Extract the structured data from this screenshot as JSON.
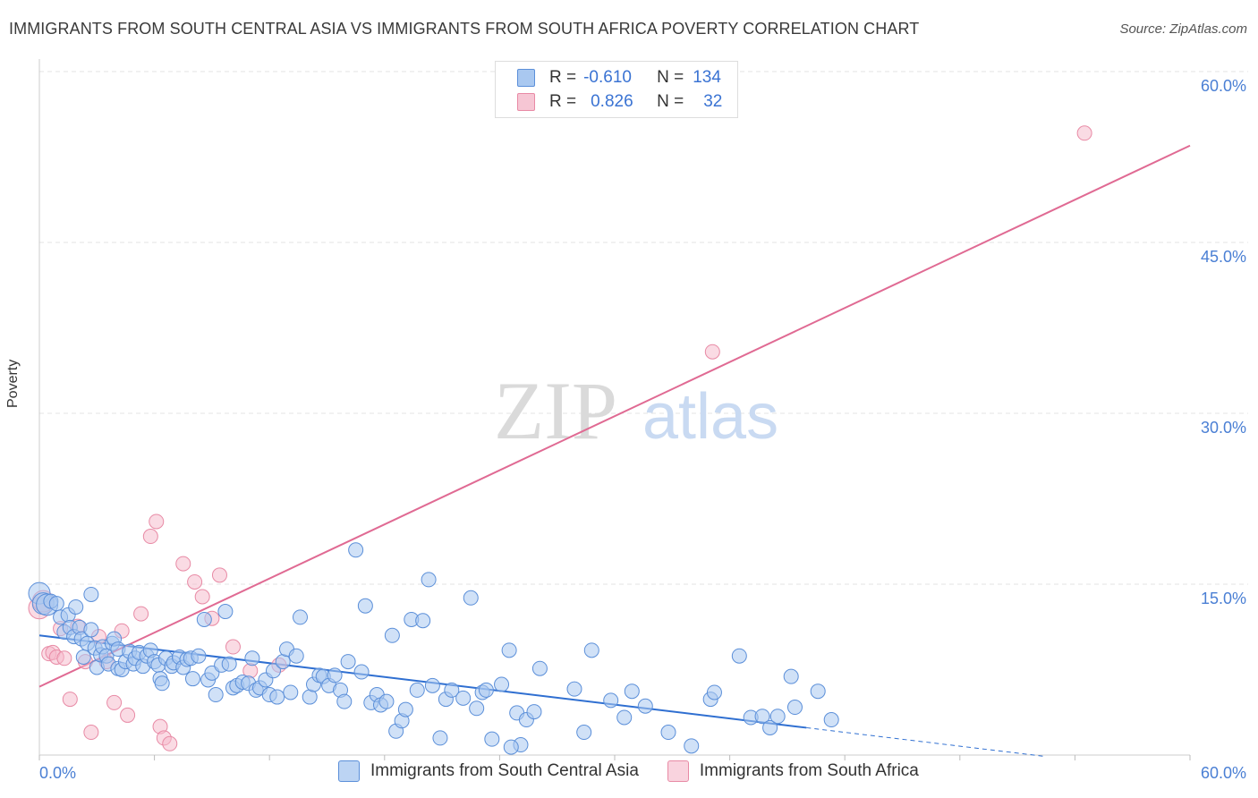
{
  "title": "IMMIGRANTS FROM SOUTH CENTRAL ASIA VS IMMIGRANTS FROM SOUTH AFRICA POVERTY CORRELATION CHART",
  "source": "Source: ZipAtlas.com",
  "watermark": {
    "zip": "ZIP",
    "atlas": "atlas"
  },
  "legend": {
    "r_label": "R =",
    "n_label": "N =",
    "series": [
      {
        "r": "-0.610",
        "n": "134"
      },
      {
        "r": "0.826",
        "n": "32"
      }
    ]
  },
  "colors": {
    "blue_fill": "#a9c8f0",
    "blue_stroke": "#5b8fd9",
    "blue_line": "#2f6fd1",
    "pink_fill": "#f6b8c9",
    "pink_stroke": "#e88aa5",
    "pink_line": "#e06a93",
    "tick_text": "#4a7fd4"
  },
  "chart_data": {
    "type": "scatter",
    "title": "IMMIGRANTS FROM SOUTH CENTRAL ASIA VS IMMIGRANTS FROM SOUTH AFRICA POVERTY CORRELATION CHART",
    "xlabel": "",
    "ylabel": "Poverty",
    "xlim": [
      0,
      60
    ],
    "ylim": [
      0,
      60
    ],
    "x_tick_labels": [
      {
        "value": 0,
        "label": "0.0%"
      },
      {
        "value": 60,
        "label": "60.0%"
      }
    ],
    "y_tick_labels": [
      {
        "value": 15,
        "label": "15.0%"
      },
      {
        "value": 30,
        "label": "30.0%"
      },
      {
        "value": 45,
        "label": "45.0%"
      },
      {
        "value": 60,
        "label": "60.0%"
      }
    ],
    "series": [
      {
        "name": "Immigrants from South Central Asia",
        "color": "blue",
        "trend": {
          "x": [
            0,
            40
          ],
          "y": [
            10.5,
            2.4
          ],
          "dashed_extension_to_x": 52.5
        },
        "points": [
          [
            0.0,
            14.2
          ],
          [
            0.2,
            13.3
          ],
          [
            0.4,
            13.2
          ],
          [
            0.6,
            13.5
          ],
          [
            0.9,
            13.3
          ],
          [
            1.1,
            12.1
          ],
          [
            1.3,
            10.8
          ],
          [
            1.5,
            12.3
          ],
          [
            1.6,
            11.2
          ],
          [
            1.8,
            10.4
          ],
          [
            1.9,
            13.0
          ],
          [
            2.1,
            11.2
          ],
          [
            2.2,
            10.2
          ],
          [
            2.3,
            8.6
          ],
          [
            2.5,
            9.8
          ],
          [
            2.7,
            11.0
          ],
          [
            2.7,
            14.1
          ],
          [
            2.9,
            9.4
          ],
          [
            3.0,
            7.7
          ],
          [
            3.2,
            8.8
          ],
          [
            3.3,
            9.5
          ],
          [
            3.5,
            8.7
          ],
          [
            3.6,
            8.0
          ],
          [
            3.8,
            9.8
          ],
          [
            3.9,
            10.2
          ],
          [
            4.1,
            9.3
          ],
          [
            4.1,
            7.6
          ],
          [
            4.3,
            7.5
          ],
          [
            4.5,
            8.2
          ],
          [
            4.7,
            9.1
          ],
          [
            4.9,
            8.0
          ],
          [
            5.0,
            8.5
          ],
          [
            5.2,
            9.0
          ],
          [
            5.4,
            7.8
          ],
          [
            5.6,
            8.7
          ],
          [
            5.8,
            9.2
          ],
          [
            6.0,
            8.2
          ],
          [
            6.2,
            7.9
          ],
          [
            6.3,
            6.7
          ],
          [
            6.4,
            6.3
          ],
          [
            6.6,
            8.5
          ],
          [
            6.9,
            7.8
          ],
          [
            7.0,
            8.1
          ],
          [
            7.3,
            8.6
          ],
          [
            7.5,
            7.7
          ],
          [
            7.7,
            8.4
          ],
          [
            7.9,
            8.5
          ],
          [
            8.0,
            6.7
          ],
          [
            8.3,
            8.7
          ],
          [
            8.6,
            11.9
          ],
          [
            8.8,
            6.6
          ],
          [
            9.0,
            7.2
          ],
          [
            9.2,
            5.3
          ],
          [
            9.5,
            7.9
          ],
          [
            9.7,
            12.6
          ],
          [
            9.9,
            8.0
          ],
          [
            10.1,
            5.9
          ],
          [
            10.3,
            6.1
          ],
          [
            10.6,
            6.4
          ],
          [
            10.9,
            6.3
          ],
          [
            11.1,
            8.5
          ],
          [
            11.3,
            5.7
          ],
          [
            11.5,
            5.9
          ],
          [
            11.8,
            6.6
          ],
          [
            12.0,
            5.3
          ],
          [
            12.2,
            7.4
          ],
          [
            12.4,
            5.1
          ],
          [
            12.7,
            8.2
          ],
          [
            12.9,
            9.3
          ],
          [
            13.1,
            5.5
          ],
          [
            13.4,
            8.7
          ],
          [
            13.6,
            12.1
          ],
          [
            14.1,
            5.1
          ],
          [
            14.3,
            6.2
          ],
          [
            14.6,
            7.0
          ],
          [
            14.8,
            6.9
          ],
          [
            15.1,
            6.1
          ],
          [
            15.4,
            7.0
          ],
          [
            15.7,
            5.7
          ],
          [
            15.9,
            4.7
          ],
          [
            16.1,
            8.2
          ],
          [
            16.5,
            18.0
          ],
          [
            16.8,
            7.3
          ],
          [
            17.0,
            13.1
          ],
          [
            17.3,
            4.6
          ],
          [
            17.6,
            5.3
          ],
          [
            17.8,
            4.4
          ],
          [
            18.1,
            4.7
          ],
          [
            18.4,
            10.5
          ],
          [
            18.6,
            2.1
          ],
          [
            18.9,
            3.0
          ],
          [
            19.1,
            4.0
          ],
          [
            19.4,
            11.9
          ],
          [
            19.7,
            5.7
          ],
          [
            20.0,
            11.8
          ],
          [
            20.3,
            15.4
          ],
          [
            20.5,
            6.1
          ],
          [
            20.9,
            1.5
          ],
          [
            21.2,
            4.9
          ],
          [
            21.5,
            5.7
          ],
          [
            22.1,
            5.0
          ],
          [
            22.5,
            13.8
          ],
          [
            22.8,
            4.1
          ],
          [
            23.1,
            5.5
          ],
          [
            23.3,
            5.7
          ],
          [
            23.6,
            1.4
          ],
          [
            24.1,
            6.2
          ],
          [
            24.5,
            9.2
          ],
          [
            24.9,
            3.7
          ],
          [
            25.1,
            0.9
          ],
          [
            25.4,
            3.1
          ],
          [
            25.8,
            3.8
          ],
          [
            26.1,
            7.6
          ],
          [
            27.9,
            5.8
          ],
          [
            28.4,
            2.0
          ],
          [
            28.8,
            9.2
          ],
          [
            29.8,
            4.8
          ],
          [
            30.5,
            3.3
          ],
          [
            30.9,
            5.6
          ],
          [
            31.6,
            4.3
          ],
          [
            32.8,
            2.0
          ],
          [
            34.0,
            0.8
          ],
          [
            35.0,
            4.9
          ],
          [
            35.2,
            5.5
          ],
          [
            36.5,
            8.7
          ],
          [
            37.1,
            3.3
          ],
          [
            37.7,
            3.4
          ],
          [
            38.1,
            2.4
          ],
          [
            38.5,
            3.4
          ],
          [
            39.2,
            6.9
          ],
          [
            39.4,
            4.2
          ],
          [
            40.6,
            5.6
          ],
          [
            41.3,
            3.1
          ],
          [
            24.6,
            0.7
          ]
        ]
      },
      {
        "name": "Immigrants from South Africa",
        "color": "pink",
        "trend": {
          "x": [
            0,
            60
          ],
          "y": [
            6.0,
            53.5
          ]
        },
        "points": [
          [
            0.0,
            12.9
          ],
          [
            0.2,
            13.5
          ],
          [
            0.5,
            8.9
          ],
          [
            0.7,
            9.0
          ],
          [
            0.9,
            8.6
          ],
          [
            1.1,
            11.1
          ],
          [
            1.3,
            8.5
          ],
          [
            1.6,
            4.9
          ],
          [
            2.0,
            11.3
          ],
          [
            2.4,
            8.2
          ],
          [
            2.7,
            2.0
          ],
          [
            3.1,
            10.4
          ],
          [
            3.5,
            8.2
          ],
          [
            3.9,
            4.6
          ],
          [
            4.3,
            10.9
          ],
          [
            4.6,
            3.5
          ],
          [
            5.3,
            12.4
          ],
          [
            5.8,
            19.2
          ],
          [
            6.1,
            20.5
          ],
          [
            6.3,
            2.5
          ],
          [
            6.5,
            1.5
          ],
          [
            6.8,
            1.0
          ],
          [
            7.5,
            16.8
          ],
          [
            8.1,
            15.2
          ],
          [
            8.5,
            13.9
          ],
          [
            9.0,
            12.0
          ],
          [
            9.4,
            15.8
          ],
          [
            10.1,
            9.5
          ],
          [
            11.0,
            7.4
          ],
          [
            12.5,
            7.9
          ],
          [
            35.1,
            35.4
          ],
          [
            54.5,
            54.6
          ]
        ]
      }
    ]
  }
}
